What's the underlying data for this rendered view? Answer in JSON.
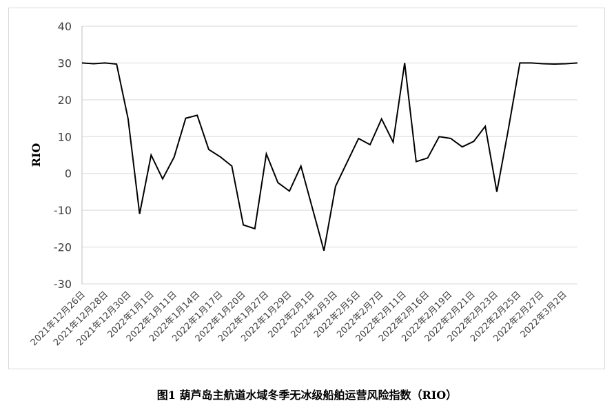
{
  "caption": "图1 葫芦岛主航道水域冬季无冰级船舶运营风险指数（RIO）",
  "chart_data": {
    "type": "line",
    "ylabel": "RIO",
    "ylim": [
      -30,
      40
    ],
    "yticks": [
      40,
      30,
      20,
      10,
      0,
      -10,
      -20,
      -30
    ],
    "grid": true,
    "x_tick_labels": [
      "2021年12月26日",
      "2021年12月28日",
      "2021年12月30日",
      "2022年1月1日",
      "2022年1月11日",
      "2022年1月14日",
      "2022年1月17日",
      "2022年1月20日",
      "2022年1月27日",
      "2022年1月29日",
      "2022年2月1日",
      "2022年2月3日",
      "2022年2月5日",
      "2022年2月7日",
      "2022年2月11日",
      "2022年2月16日",
      "2022年2月19日",
      "2022年2月21日",
      "2022年2月23日",
      "2022年2月25日",
      "2022年2月27日",
      "2022年3月2日"
    ],
    "series": [
      {
        "color": "#000000",
        "values": [
          30,
          29.8,
          30,
          29.7,
          14.8,
          -11,
          5,
          -1.5,
          4.5,
          15,
          15.8,
          6.5,
          4.5,
          2,
          -14,
          -15,
          5.3,
          -2.5,
          -4.8,
          2,
          -9.5,
          -21,
          -3.5,
          3,
          9.5,
          7.8,
          14.8,
          8.5,
          30,
          3.2,
          4.2,
          10,
          9.5,
          7.2,
          8.7,
          12.8,
          -5,
          12,
          30,
          30,
          29.8,
          29.7,
          29.8,
          30
        ]
      }
    ]
  }
}
